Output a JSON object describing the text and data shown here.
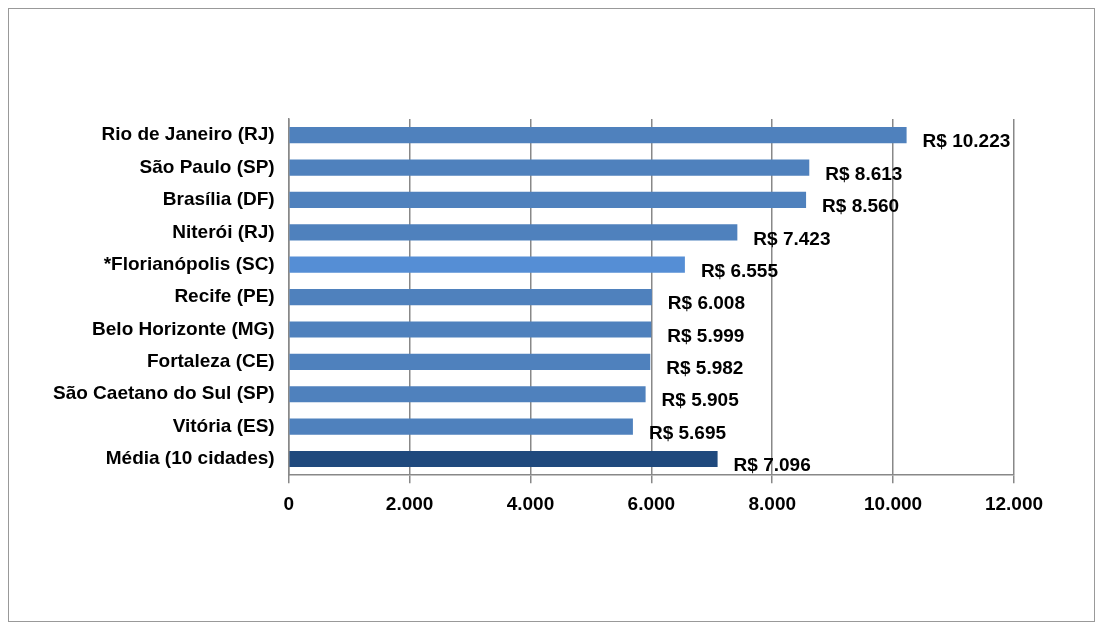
{
  "chart_data": {
    "type": "bar",
    "orientation": "horizontal",
    "categories": [
      "Rio de Janeiro (RJ)",
      "São Paulo (SP)",
      "Brasília (DF)",
      "Niterói (RJ)",
      "*Florianópolis (SC)",
      "Recife (PE)",
      "Belo Horizonte (MG)",
      "Fortaleza (CE)",
      "São Caetano do Sul (SP)",
      "Vitória (ES)",
      "Média (10 cidades)"
    ],
    "values": [
      10223,
      8613,
      8560,
      7423,
      6555,
      6008,
      5999,
      5982,
      5905,
      5695,
      7096
    ],
    "colors": [
      "#4f81bd",
      "#4f81bd",
      "#4f81bd",
      "#4f81bd",
      "#558ed5",
      "#4f81bd",
      "#4f81bd",
      "#4f81bd",
      "#4f81bd",
      "#4f81bd",
      "#1f497d"
    ],
    "value_labels": [
      "R$ 10.223",
      "R$ 8.613",
      "R$ 8.560",
      "R$ 7.423",
      "R$ 6.555",
      "R$ 6.008",
      "R$ 5.999",
      "R$ 5.982",
      "R$ 5.905",
      "R$ 5.695",
      "R$ 7.096"
    ],
    "xlim": [
      0,
      12000
    ],
    "xticks": [
      0,
      {
        "value": 2000,
        "label": "2.000"
      },
      {
        "value": 4000,
        "label": "4.000"
      },
      {
        "value": 6000,
        "label": "6.000"
      },
      {
        "value": 8000,
        "label": "8.000"
      },
      {
        "value": 10000,
        "label": "10.000"
      },
      {
        "value": 12000,
        "label": "12.000"
      }
    ],
    "grid": "x",
    "legend": false
  }
}
